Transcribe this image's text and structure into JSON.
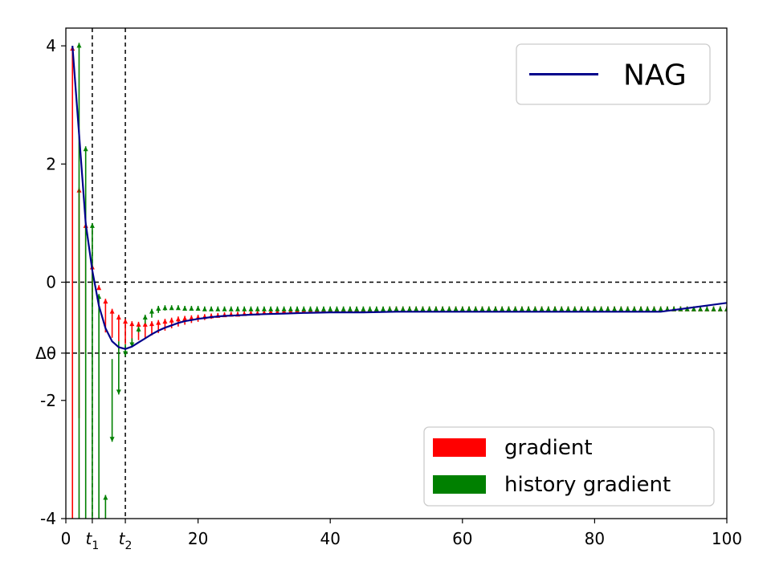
{
  "chart_data": {
    "type": "line",
    "title": "",
    "xlabel": "",
    "ylabel": "",
    "xlim": [
      0,
      100
    ],
    "ylim": [
      -4,
      4.3
    ],
    "x_ticks": [
      {
        "value": 0,
        "label": "0"
      },
      {
        "value": 4,
        "label": "t",
        "sub": "1"
      },
      {
        "value": 9,
        "label": "t",
        "sub": "2"
      },
      {
        "value": 20,
        "label": "20"
      },
      {
        "value": 40,
        "label": "40"
      },
      {
        "value": 60,
        "label": "60"
      },
      {
        "value": 80,
        "label": "80"
      },
      {
        "value": 100,
        "label": "100"
      }
    ],
    "y_ticks": [
      {
        "value": 4,
        "label": "4"
      },
      {
        "value": 2,
        "label": "2"
      },
      {
        "value": 0,
        "label": "0"
      },
      {
        "value": -1.2,
        "label": "Δθ"
      },
      {
        "value": -2,
        "label": "-2"
      },
      {
        "value": -4,
        "label": "-4"
      }
    ],
    "reference_lines": {
      "vertical_x": [
        4,
        9
      ],
      "horizontal_y": [
        0,
        -1.2
      ]
    },
    "series": [
      {
        "name": "NAG",
        "color": "#00008b",
        "x": [
          1,
          2,
          3,
          4,
          5,
          6,
          7,
          8,
          9,
          10,
          11,
          12,
          13,
          14,
          15,
          16,
          17,
          18,
          19,
          20,
          22,
          24,
          26,
          28,
          30,
          33,
          36,
          40,
          45,
          50,
          60,
          70,
          80,
          90,
          100
        ],
        "values": [
          4.0,
          2.5,
          1.0,
          0.2,
          -0.4,
          -0.78,
          -1.0,
          -1.1,
          -1.13,
          -1.09,
          -1.02,
          -0.95,
          -0.88,
          -0.82,
          -0.77,
          -0.73,
          -0.69,
          -0.66,
          -0.64,
          -0.62,
          -0.59,
          -0.57,
          -0.56,
          -0.55,
          -0.54,
          -0.53,
          -0.52,
          -0.51,
          -0.51,
          -0.5,
          -0.5,
          -0.5,
          -0.5,
          -0.5,
          -0.35
        ]
      }
    ],
    "gradient_arrows": {
      "name": "gradient",
      "color": "#ff0000",
      "x": [
        1,
        2,
        3,
        4,
        5,
        6,
        7,
        8,
        9,
        10,
        11,
        12,
        13,
        14,
        15,
        16,
        17,
        18,
        19,
        20,
        21,
        22,
        23,
        24,
        25,
        26,
        27,
        28,
        29,
        30,
        31,
        32,
        33,
        34,
        35,
        36,
        37,
        38,
        39,
        40,
        41,
        42,
        43,
        44,
        45,
        46,
        47,
        48,
        49,
        50,
        51,
        52,
        53,
        54,
        55,
        56,
        57,
        58,
        59,
        60,
        61,
        62,
        63,
        64,
        65,
        66,
        67,
        68,
        69,
        70,
        71,
        72,
        73,
        74,
        75,
        76,
        77,
        78,
        79,
        80,
        81,
        82,
        83,
        84,
        85,
        86,
        87,
        88,
        89,
        90,
        91,
        92,
        93,
        94,
        95,
        96,
        97,
        98,
        99,
        100
      ],
      "start": [
        -4.0,
        -2.3,
        -1.2,
        -0.3,
        -0.1,
        -0.85,
        -0.94,
        -1.0,
        -1.05,
        -1.02,
        -0.98,
        -0.95,
        -0.9,
        -0.86,
        -0.82,
        -0.78,
        -0.75,
        -0.72,
        -0.69,
        -0.67,
        -0.64,
        -0.62,
        -0.6,
        -0.59,
        -0.58,
        -0.57,
        -0.56,
        -0.55,
        -0.54,
        -0.53,
        -0.52,
        -0.52,
        -0.51,
        -0.51,
        -0.5,
        -0.5,
        -0.5,
        -0.49,
        -0.49,
        -0.49,
        -0.49,
        -0.49,
        -0.49,
        -0.49,
        -0.49,
        -0.49,
        -0.49,
        -0.49,
        -0.49,
        -0.49,
        -0.49,
        -0.49,
        -0.49,
        -0.49,
        -0.49,
        -0.49,
        -0.49,
        -0.49,
        -0.49,
        -0.49,
        -0.49,
        -0.49,
        -0.49,
        -0.49,
        -0.49,
        -0.49,
        -0.49,
        -0.49,
        -0.49,
        -0.49,
        -0.49,
        -0.49,
        -0.49,
        -0.49,
        -0.49,
        -0.49,
        -0.49,
        -0.49,
        -0.49,
        -0.49,
        -0.49,
        -0.49,
        -0.49,
        -0.49,
        -0.49,
        -0.49,
        -0.49,
        -0.49,
        -0.49,
        -0.49,
        -0.49,
        -0.49,
        -0.49,
        -0.49,
        -0.49,
        -0.49,
        -0.49,
        -0.49,
        -0.49,
        -0.49
      ],
      "end": [
        4.0,
        1.6,
        1.0,
        0.3,
        -0.05,
        -0.28,
        -0.45,
        -0.55,
        -0.62,
        -0.66,
        -0.67,
        -0.67,
        -0.66,
        -0.64,
        -0.62,
        -0.6,
        -0.58,
        -0.57,
        -0.56,
        -0.55,
        -0.54,
        -0.53,
        -0.52,
        -0.51,
        -0.5,
        -0.5,
        -0.49,
        -0.48,
        -0.48,
        -0.47,
        -0.46,
        -0.46,
        -0.45,
        -0.45,
        -0.44,
        -0.44,
        -0.44,
        -0.43,
        -0.43,
        -0.43,
        -0.43,
        -0.42,
        -0.42,
        -0.42,
        -0.42,
        -0.42,
        -0.42,
        -0.42,
        -0.41,
        -0.41,
        -0.41,
        -0.41,
        -0.41,
        -0.41,
        -0.41,
        -0.41,
        -0.41,
        -0.41,
        -0.41,
        -0.41,
        -0.41,
        -0.41,
        -0.41,
        -0.41,
        -0.41,
        -0.41,
        -0.41,
        -0.41,
        -0.41,
        -0.41,
        -0.41,
        -0.41,
        -0.41,
        -0.41,
        -0.41,
        -0.41,
        -0.41,
        -0.41,
        -0.41,
        -0.41,
        -0.41,
        -0.41,
        -0.41,
        -0.41,
        -0.41,
        -0.41,
        -0.41,
        -0.41,
        -0.41,
        -0.41,
        -0.41,
        -0.41,
        -0.41,
        -0.41,
        -0.41,
        -0.41,
        -0.41,
        -0.41,
        -0.41,
        -0.41
      ]
    },
    "history_gradient_arrows": {
      "name": "history gradient",
      "color": "#008000",
      "x": [
        2,
        3,
        4,
        5,
        6,
        7,
        8,
        9,
        10,
        11,
        12,
        13,
        14,
        15,
        16,
        17,
        18,
        19,
        20,
        21,
        22,
        23,
        24,
        25,
        26,
        27,
        28,
        29,
        30,
        31,
        32,
        33,
        34,
        35,
        36,
        37,
        38,
        39,
        40,
        41,
        42,
        43,
        44,
        45,
        46,
        47,
        48,
        49,
        50,
        51,
        52,
        53,
        54,
        55,
        56,
        57,
        58,
        59,
        60,
        61,
        62,
        63,
        64,
        65,
        66,
        67,
        68,
        69,
        70,
        71,
        72,
        73,
        74,
        75,
        76,
        77,
        78,
        79,
        80,
        81,
        82,
        83,
        84,
        85,
        86,
        87,
        88,
        89,
        90,
        91,
        92,
        93,
        94,
        95,
        96,
        97,
        98,
        99,
        100
      ],
      "start": [
        -4.0,
        -4.0,
        -4.0,
        -4.0,
        -4.0,
        -1.3,
        -1.0,
        -1.05,
        -0.95,
        -0.85,
        -0.7,
        -0.6,
        -0.52,
        -0.48,
        -0.46,
        -0.45,
        -0.45,
        -0.45,
        -0.46,
        -0.46,
        -0.46,
        -0.46,
        -0.47,
        -0.47,
        -0.47,
        -0.47,
        -0.47,
        -0.47,
        -0.47,
        -0.47,
        -0.47,
        -0.47,
        -0.47,
        -0.47,
        -0.47,
        -0.47,
        -0.47,
        -0.47,
        -0.47,
        -0.47,
        -0.47,
        -0.47,
        -0.47,
        -0.47,
        -0.47,
        -0.47,
        -0.47,
        -0.47,
        -0.47,
        -0.47,
        -0.47,
        -0.47,
        -0.47,
        -0.47,
        -0.47,
        -0.47,
        -0.47,
        -0.47,
        -0.47,
        -0.47,
        -0.47,
        -0.47,
        -0.47,
        -0.47,
        -0.47,
        -0.47,
        -0.47,
        -0.47,
        -0.47,
        -0.47,
        -0.47,
        -0.47,
        -0.47,
        -0.47,
        -0.47,
        -0.47,
        -0.47,
        -0.47,
        -0.47,
        -0.47,
        -0.47,
        -0.47,
        -0.47,
        -0.47,
        -0.47,
        -0.47,
        -0.47,
        -0.47,
        -0.47,
        -0.47,
        -0.47,
        -0.47,
        -0.47,
        -0.47,
        -0.47,
        -0.47,
        -0.47,
        -0.47,
        -0.47
      ],
      "end": [
        4.05,
        2.3,
        1.0,
        -0.2,
        -3.6,
        -2.7,
        -1.9,
        -1.25,
        -1.1,
        -0.75,
        -0.55,
        -0.45,
        -0.4,
        -0.39,
        -0.39,
        -0.39,
        -0.4,
        -0.4,
        -0.4,
        -0.41,
        -0.41,
        -0.41,
        -0.41,
        -0.41,
        -0.41,
        -0.41,
        -0.41,
        -0.41,
        -0.41,
        -0.41,
        -0.41,
        -0.41,
        -0.41,
        -0.41,
        -0.41,
        -0.41,
        -0.41,
        -0.41,
        -0.41,
        -0.41,
        -0.41,
        -0.41,
        -0.41,
        -0.41,
        -0.41,
        -0.41,
        -0.41,
        -0.41,
        -0.41,
        -0.41,
        -0.41,
        -0.41,
        -0.41,
        -0.41,
        -0.41,
        -0.41,
        -0.41,
        -0.41,
        -0.41,
        -0.41,
        -0.41,
        -0.41,
        -0.41,
        -0.41,
        -0.41,
        -0.41,
        -0.41,
        -0.41,
        -0.41,
        -0.41,
        -0.41,
        -0.41,
        -0.41,
        -0.41,
        -0.41,
        -0.41,
        -0.41,
        -0.41,
        -0.41,
        -0.41,
        -0.41,
        -0.41,
        -0.41,
        -0.41,
        -0.41,
        -0.41,
        -0.41,
        -0.41,
        -0.41,
        -0.41,
        -0.41,
        -0.41,
        -0.41,
        -0.41,
        -0.41,
        -0.41,
        -0.41,
        -0.41,
        -0.41
      ]
    },
    "legends": [
      {
        "placement": "top-right",
        "entries": [
          {
            "label": "NAG",
            "kind": "line",
            "color": "#00008b"
          }
        ]
      },
      {
        "placement": "bottom-right",
        "entries": [
          {
            "label": "gradient",
            "kind": "patch",
            "color": "#ff0000"
          },
          {
            "label": "history gradient",
            "kind": "patch",
            "color": "#008000"
          }
        ]
      }
    ],
    "grid": false
  }
}
